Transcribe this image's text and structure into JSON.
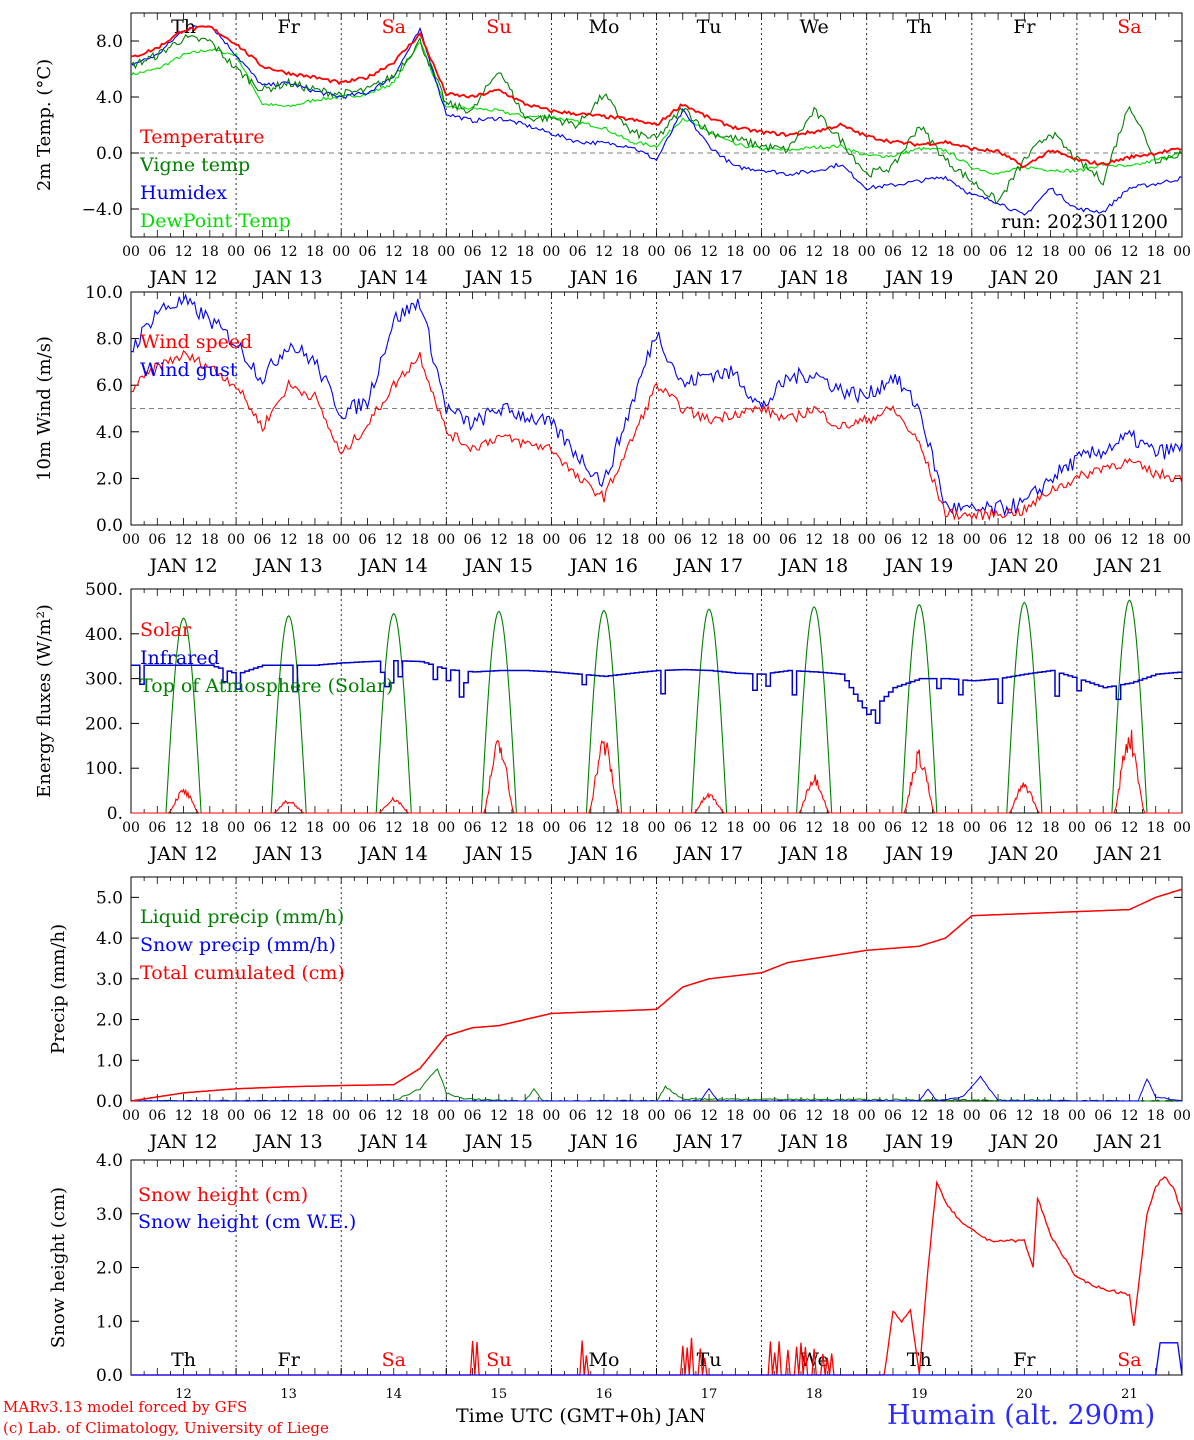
{
  "run_label": "run: 2023011200",
  "x_axis": {
    "hour_labels": [
      "00",
      "06",
      "12",
      "18"
    ],
    "final_hour_label": "00",
    "date_labels": [
      "JAN 12",
      "JAN 13",
      "JAN 14",
      "JAN 15",
      "JAN 16",
      "JAN 17",
      "JAN 18",
      "JAN 19",
      "JAN 20",
      "JAN 21"
    ],
    "weekdays": [
      "Th",
      "Fr",
      "Sa",
      "Su",
      "Mo",
      "Tu",
      "We",
      "Th",
      "Fr",
      "Sa"
    ],
    "weekend_color": "#ff0000",
    "weekday_color": "#000000",
    "bottom_day_numbers": [
      "12",
      "13",
      "14",
      "15",
      "16",
      "17",
      "18",
      "19",
      "20",
      "21"
    ],
    "title": "Time UTC (GMT+0h) JAN"
  },
  "footer": {
    "credit_line1": "MARv3.13 model forced by GFS",
    "credit_line2": "(c) Lab. of Climatology, University of Liege",
    "station": "Humain (alt. 290m)"
  },
  "chart_data": [
    {
      "type": "line",
      "ylabel": "2m Temp. (°C)",
      "ylim": [
        -6,
        10
      ],
      "yticks": [
        -4,
        0,
        4,
        8
      ],
      "ytick_labels": [
        "−4.0",
        "0.0",
        "4.0",
        "8.0"
      ],
      "dashed_reference": 0,
      "grid": "vertical dotted day separators",
      "legend_placement": "left",
      "x_unit": "hours since JAN 12 00 UTC",
      "series": [
        {
          "name": "Temperature",
          "color": "#ff0000",
          "x": [
            0,
            6,
            12,
            18,
            24,
            30,
            36,
            42,
            48,
            54,
            60,
            66,
            72,
            78,
            84,
            90,
            96,
            102,
            108,
            114,
            120,
            126,
            132,
            138,
            144,
            150,
            156,
            162,
            168,
            174,
            180,
            186,
            192,
            198,
            204,
            210,
            216,
            222,
            228,
            234,
            240
          ],
          "values": [
            6.8,
            7.5,
            8.8,
            9.0,
            7.8,
            6.2,
            5.7,
            5.4,
            5.0,
            5.4,
            6.5,
            8.5,
            4.2,
            4.0,
            4.5,
            3.5,
            3.0,
            2.8,
            2.6,
            2.4,
            2.0,
            3.5,
            2.5,
            1.8,
            1.5,
            1.3,
            1.5,
            2.0,
            1.2,
            0.8,
            0.6,
            0.8,
            0.3,
            0.1,
            -1.0,
            0.2,
            -0.5,
            -0.8,
            -0.3,
            0.0,
            0.3
          ]
        },
        {
          "name": "Vigne temp",
          "color": "#008000",
          "x": [
            0,
            6,
            12,
            18,
            24,
            30,
            36,
            42,
            48,
            54,
            60,
            66,
            72,
            78,
            84,
            90,
            96,
            102,
            108,
            114,
            120,
            126,
            132,
            138,
            144,
            150,
            156,
            162,
            168,
            174,
            180,
            186,
            192,
            198,
            204,
            210,
            216,
            222,
            228,
            234,
            240
          ],
          "values": [
            6.2,
            7.0,
            8.2,
            8.0,
            6.0,
            4.5,
            5.0,
            4.5,
            4.2,
            4.5,
            5.5,
            8.0,
            3.5,
            3.0,
            6.0,
            2.5,
            2.5,
            2.0,
            4.2,
            1.5,
            1.0,
            3.2,
            1.5,
            1.0,
            0.5,
            0.2,
            3.0,
            1.0,
            -1.5,
            -1.0,
            2.0,
            -0.5,
            -2.0,
            -3.5,
            -0.5,
            1.5,
            -0.5,
            -2.0,
            3.5,
            -0.5,
            0.0
          ]
        },
        {
          "name": "Humidex",
          "color": "#0000ff",
          "x": [
            0,
            6,
            12,
            18,
            24,
            30,
            36,
            42,
            48,
            54,
            60,
            66,
            72,
            78,
            84,
            90,
            96,
            102,
            108,
            114,
            120,
            126,
            132,
            138,
            144,
            150,
            156,
            162,
            168,
            174,
            180,
            186,
            192,
            198,
            204,
            210,
            216,
            222,
            228,
            234,
            240
          ],
          "values": [
            6.3,
            7.0,
            8.8,
            9.2,
            7.0,
            4.8,
            5.0,
            4.4,
            4.0,
            4.3,
            5.5,
            8.8,
            2.8,
            2.3,
            2.5,
            2.0,
            1.4,
            0.8,
            0.7,
            0.5,
            -0.5,
            3.0,
            0.5,
            -1.0,
            -1.2,
            -1.5,
            -1.3,
            -0.8,
            -2.5,
            -2.3,
            -2.0,
            -1.7,
            -3.0,
            -3.5,
            -4.5,
            -2.5,
            -4.0,
            -4.2,
            -2.5,
            -2.2,
            -1.8
          ]
        },
        {
          "name": "DewPoint Temp",
          "color": "#00dd00",
          "x": [
            0,
            6,
            12,
            18,
            24,
            30,
            36,
            42,
            48,
            54,
            60,
            66,
            72,
            78,
            84,
            90,
            96,
            102,
            108,
            114,
            120,
            126,
            132,
            138,
            144,
            150,
            156,
            162,
            168,
            174,
            180,
            186,
            192,
            198,
            204,
            210,
            216,
            222,
            228,
            234,
            240
          ],
          "values": [
            5.6,
            6.0,
            7.0,
            7.4,
            7.0,
            3.5,
            3.3,
            3.8,
            4.0,
            4.2,
            5.0,
            8.0,
            3.2,
            3.2,
            3.0,
            2.6,
            2.6,
            2.2,
            1.8,
            0.8,
            0.5,
            2.5,
            1.5,
            0.6,
            0.3,
            0.2,
            0.4,
            0.5,
            -0.2,
            -0.2,
            0.3,
            0.2,
            -1.0,
            -1.5,
            -1.0,
            -1.2,
            -1.3,
            -0.8,
            -1.0,
            -0.5,
            0.0
          ]
        }
      ]
    },
    {
      "type": "line",
      "ylabel": "10m Wind (m/s)",
      "ylim": [
        0,
        10
      ],
      "yticks": [
        0,
        2,
        4,
        6,
        8,
        10
      ],
      "ytick_labels": [
        "0.0",
        "2.0",
        "4.0",
        "6.0",
        "8.0",
        "10.0"
      ],
      "dashed_reference": 5,
      "legend_placement": "left",
      "x_unit": "hours since JAN 12 00 UTC",
      "series": [
        {
          "name": "Wind speed",
          "color": "#ff0000",
          "x": [
            0,
            6,
            12,
            18,
            24,
            30,
            36,
            42,
            48,
            54,
            60,
            66,
            72,
            78,
            84,
            90,
            96,
            102,
            108,
            114,
            120,
            126,
            132,
            138,
            144,
            150,
            156,
            162,
            168,
            174,
            180,
            186,
            192,
            198,
            204,
            210,
            216,
            222,
            228,
            234,
            240
          ],
          "values": [
            5.8,
            6.8,
            7.3,
            6.8,
            6.0,
            4.2,
            6.0,
            5.5,
            3.0,
            4.3,
            6.0,
            7.3,
            4.0,
            3.3,
            3.8,
            3.5,
            3.3,
            2.0,
            1.2,
            3.5,
            6.0,
            5.0,
            4.5,
            4.8,
            5.0,
            4.5,
            5.0,
            4.2,
            4.5,
            5.0,
            3.5,
            0.5,
            0.4,
            0.5,
            0.6,
            1.5,
            2.0,
            2.5,
            2.7,
            2.2,
            2.0
          ]
        },
        {
          "name": "Wind gust",
          "color": "#0000ff",
          "x": [
            0,
            6,
            12,
            18,
            24,
            30,
            36,
            42,
            48,
            54,
            60,
            66,
            72,
            78,
            84,
            90,
            96,
            102,
            108,
            114,
            120,
            126,
            132,
            138,
            144,
            150,
            156,
            162,
            168,
            174,
            180,
            186,
            192,
            198,
            204,
            210,
            216,
            222,
            228,
            234,
            240
          ],
          "values": [
            7.5,
            9.2,
            9.6,
            8.8,
            7.8,
            6.3,
            7.8,
            7.0,
            4.8,
            5.3,
            8.8,
            9.6,
            5.0,
            4.3,
            5.0,
            4.7,
            4.3,
            3.0,
            1.8,
            5.0,
            8.3,
            6.0,
            6.5,
            6.5,
            5.0,
            6.3,
            6.5,
            5.8,
            5.5,
            6.4,
            5.0,
            0.8,
            0.6,
            0.7,
            0.9,
            2.0,
            2.8,
            3.2,
            3.8,
            3.1,
            3.3
          ]
        }
      ]
    },
    {
      "type": "line",
      "ylabel": "Energy fluxes (W/m²)",
      "ylim": [
        0,
        500
      ],
      "yticks": [
        0,
        100,
        200,
        300,
        400,
        500
      ],
      "ytick_labels": [
        "0.",
        "100.",
        "200.",
        "300.",
        "400.",
        "500."
      ],
      "legend_placement": "left",
      "x_unit": "hours since JAN 12 00 UTC",
      "series": [
        {
          "name": "Solar",
          "color": "#ff0000",
          "daily_peaks": [
            55,
            30,
            35,
            170,
            175,
            45,
            90,
            145,
            70,
            195
          ]
        },
        {
          "name": "Infrared",
          "color": "#0000cc",
          "x": [
            0,
            6,
            12,
            18,
            24,
            30,
            36,
            42,
            48,
            54,
            60,
            66,
            72,
            78,
            84,
            90,
            96,
            102,
            108,
            114,
            120,
            126,
            132,
            138,
            144,
            150,
            156,
            162,
            168,
            174,
            180,
            186,
            192,
            198,
            204,
            210,
            216,
            222,
            228,
            234,
            240
          ],
          "values": [
            330,
            330,
            330,
            330,
            310,
            330,
            330,
            330,
            335,
            338,
            340,
            338,
            320,
            315,
            318,
            318,
            315,
            310,
            305,
            312,
            318,
            320,
            318,
            312,
            310,
            318,
            315,
            310,
            220,
            280,
            300,
            300,
            295,
            300,
            310,
            318,
            300,
            280,
            290,
            310,
            315
          ]
        },
        {
          "name": "Top of Atmosphere (Solar)",
          "color": "#008000",
          "daily_peaks": [
            435,
            440,
            445,
            450,
            452,
            455,
            460,
            465,
            470,
            475
          ]
        }
      ]
    },
    {
      "type": "line",
      "ylabel": "Precip (mm/h)",
      "ylim": [
        0,
        5.5
      ],
      "yticks": [
        0,
        1,
        2,
        3,
        4,
        5
      ],
      "ytick_labels": [
        "0.0",
        "1.0",
        "2.0",
        "3.0",
        "4.0",
        "5.0"
      ],
      "legend_placement": "left",
      "x_unit": "hours since JAN 12 00 UTC",
      "series": [
        {
          "name": "Liquid precip (mm/h)",
          "color": "#008000",
          "x": [
            0,
            60,
            66,
            70,
            72,
            76,
            90,
            92,
            94,
            120,
            122,
            124,
            126,
            240
          ],
          "values": [
            0,
            0,
            0.3,
            0.8,
            0.2,
            0.05,
            0,
            0.3,
            0,
            0,
            0.35,
            0.2,
            0.05,
            0
          ]
        },
        {
          "name": "Snow precip (mm/h)",
          "color": "#0000ff",
          "x": [
            0,
            130,
            132,
            134,
            180,
            182,
            184,
            190,
            194,
            198,
            230,
            232,
            234,
            240
          ],
          "values": [
            0,
            0,
            0.3,
            0,
            0,
            0.3,
            0,
            0.1,
            0.6,
            0,
            0,
            0.55,
            0.1,
            0
          ]
        },
        {
          "name": "Total cumulated (cm)",
          "color": "#ff0000",
          "x": [
            0,
            12,
            24,
            36,
            48,
            60,
            66,
            72,
            78,
            84,
            96,
            108,
            120,
            126,
            132,
            144,
            150,
            156,
            168,
            180,
            186,
            192,
            204,
            216,
            228,
            234,
            240
          ],
          "values": [
            0,
            0.2,
            0.3,
            0.35,
            0.38,
            0.4,
            0.8,
            1.6,
            1.8,
            1.85,
            2.15,
            2.2,
            2.25,
            2.8,
            3.0,
            3.15,
            3.4,
            3.5,
            3.7,
            3.8,
            4.0,
            4.55,
            4.6,
            4.65,
            4.7,
            5.0,
            5.2
          ]
        }
      ]
    },
    {
      "type": "line",
      "ylabel": "Snow height (cm)",
      "ylim": [
        0,
        4
      ],
      "yticks": [
        0,
        1,
        2,
        3,
        4
      ],
      "ytick_labels": [
        "0.0",
        "1.0",
        "2.0",
        "3.0",
        "4.0"
      ],
      "legend_placement": "left",
      "x_unit": "hours since JAN 12 00 UTC",
      "series": [
        {
          "name": "Snow height (cm)",
          "color": "#ff0000",
          "x": [
            0,
            172,
            174,
            176,
            178,
            180,
            182,
            184,
            186,
            190,
            192,
            196,
            204,
            206,
            207,
            210,
            216,
            222,
            228,
            229,
            232,
            234,
            236,
            238,
            240
          ],
          "values": [
            0,
            0,
            1.2,
            1.0,
            1.2,
            0,
            2.0,
            3.6,
            3.2,
            2.8,
            2.7,
            2.5,
            2.5,
            2.0,
            3.3,
            2.6,
            1.8,
            1.6,
            1.5,
            0.9,
            3.0,
            3.5,
            3.7,
            3.5,
            3.0
          ]
        },
        {
          "name": "Snow height (cm W.E.)",
          "color": "#0000ff",
          "x": [
            0,
            234,
            235,
            239,
            240
          ],
          "values": [
            0,
            0,
            0.6,
            0.6,
            0
          ]
        }
      ]
    }
  ]
}
